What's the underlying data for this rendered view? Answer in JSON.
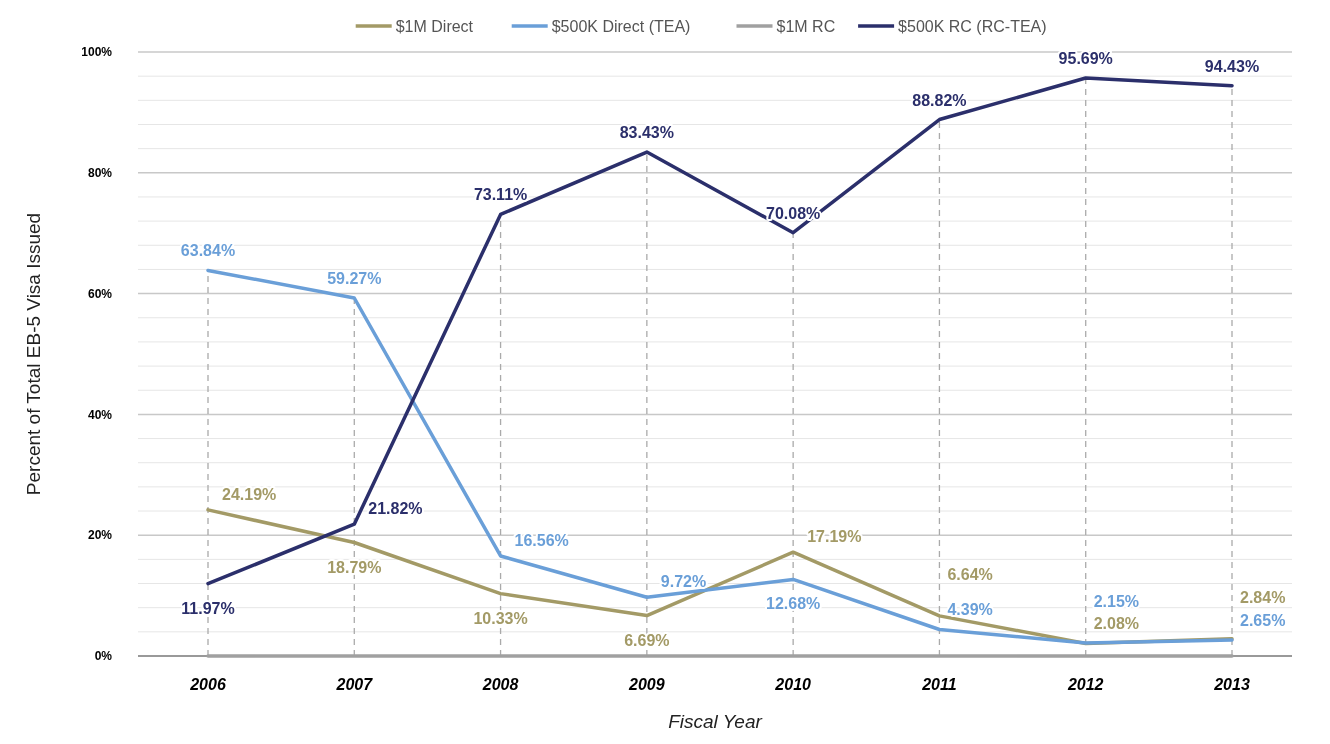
{
  "chart_data": {
    "type": "line",
    "xlabel": "Fiscal Year",
    "ylabel": "Percent of Total EB-5 Visa Issued",
    "categories": [
      "2006",
      "2007",
      "2008",
      "2009",
      "2010",
      "2011",
      "2012",
      "2013"
    ],
    "series": [
      {
        "name": "$1M Direct",
        "color": "#a39a66",
        "values": [
          24.19,
          18.79,
          10.33,
          6.69,
          17.19,
          6.64,
          2.08,
          2.84
        ],
        "value_labels": [
          "24.19%",
          "18.79%",
          "10.33%",
          "6.69%",
          "17.19%",
          "6.64%",
          "2.08%",
          "2.84%"
        ]
      },
      {
        "name": "$500K Direct (TEA)",
        "color": "#6a9fd8",
        "values": [
          63.84,
          59.27,
          16.56,
          9.72,
          12.68,
          4.39,
          2.15,
          2.65
        ],
        "value_labels": [
          "63.84%",
          "59.27%",
          "16.56%",
          "9.72%",
          "12.68%",
          "4.39%",
          "2.15%",
          "2.65%"
        ]
      },
      {
        "name": "$1M RC",
        "color": "#a0a0a0",
        "values": [
          0,
          0,
          0,
          0,
          0,
          0,
          0,
          0
        ]
      },
      {
        "name": "$500K RC (RC-TEA)",
        "color": "#2b2f6b",
        "values": [
          11.97,
          21.82,
          73.11,
          83.43,
          70.08,
          88.82,
          95.69,
          94.43
        ],
        "value_labels": [
          "11.97%",
          "21.82%",
          "73.11%",
          "83.43%",
          "70.08%",
          "88.82%",
          "95.69%",
          "94.43%"
        ]
      }
    ],
    "ylim": [
      0,
      100
    ],
    "yticks": [
      {
        "value": 0,
        "label": "0%"
      },
      {
        "value": 4,
        "label": null
      },
      {
        "value": 8,
        "label": null
      },
      {
        "value": 12,
        "label": null
      },
      {
        "value": 16,
        "label": null
      },
      {
        "value": 20,
        "label": "20%"
      },
      {
        "value": 24,
        "label": null
      },
      {
        "value": 28,
        "label": null
      },
      {
        "value": 32,
        "label": null
      },
      {
        "value": 36,
        "label": null
      },
      {
        "value": 40,
        "label": "40%"
      },
      {
        "value": 44,
        "label": null
      },
      {
        "value": 48,
        "label": null
      },
      {
        "value": 52,
        "label": null
      },
      {
        "value": 56,
        "label": null
      },
      {
        "value": 60,
        "label": "60%"
      },
      {
        "value": 64,
        "label": null
      },
      {
        "value": 68,
        "label": null
      },
      {
        "value": 72,
        "label": null
      },
      {
        "value": 76,
        "label": null
      },
      {
        "value": 80,
        "label": "80%"
      },
      {
        "value": 84,
        "label": null
      },
      {
        "value": 88,
        "label": null
      },
      {
        "value": 92,
        "label": null
      },
      {
        "value": 96,
        "label": null
      },
      {
        "value": 100,
        "label": "100%"
      }
    ],
    "grid": "y",
    "legend": "top",
    "line_style": "solid",
    "ref_lines": [
      {
        "axis": "x",
        "value": "2006",
        "color": "#aaaaaa",
        "line_style": "dashed"
      },
      {
        "axis": "x",
        "value": "2007",
        "color": "#aaaaaa",
        "line_style": "dashed"
      },
      {
        "axis": "x",
        "value": "2008",
        "color": "#aaaaaa",
        "line_style": "dashed"
      },
      {
        "axis": "x",
        "value": "2009",
        "color": "#aaaaaa",
        "line_style": "dashed"
      },
      {
        "axis": "x",
        "value": "2010",
        "color": "#aaaaaa",
        "line_style": "dashed"
      },
      {
        "axis": "x",
        "value": "2011",
        "color": "#aaaaaa",
        "line_style": "dashed"
      },
      {
        "axis": "x",
        "value": "2012",
        "color": "#aaaaaa",
        "line_style": "dashed"
      },
      {
        "axis": "x",
        "value": "2013",
        "color": "#aaaaaa",
        "line_style": "dashed"
      }
    ]
  }
}
